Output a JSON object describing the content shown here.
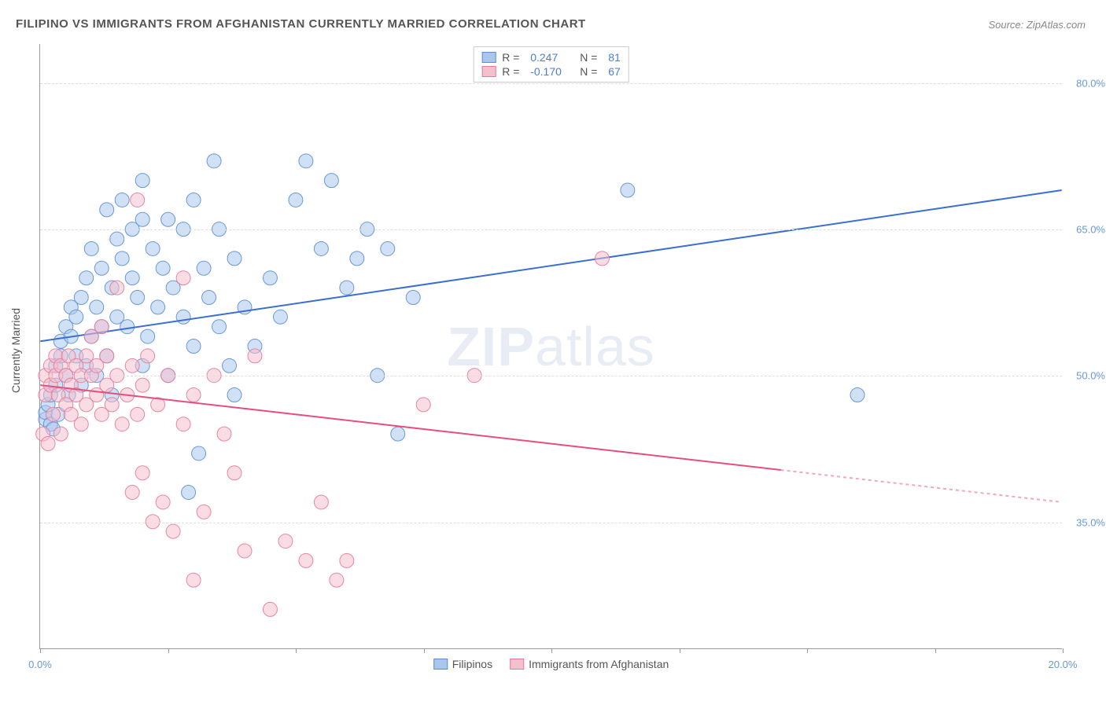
{
  "title": "FILIPINO VS IMMIGRANTS FROM AFGHANISTAN CURRENTLY MARRIED CORRELATION CHART",
  "source": "Source: ZipAtlas.com",
  "y_axis_label": "Currently Married",
  "watermark_bold": "ZIP",
  "watermark_light": "atlas",
  "chart": {
    "type": "scatter",
    "background_color": "#ffffff",
    "grid_color": "#dddddd",
    "axis_color": "#999999",
    "xlim": [
      0,
      20
    ],
    "ylim": [
      22,
      84
    ],
    "x_ticks": [
      0,
      2.5,
      5,
      7.5,
      10,
      12.5,
      15,
      17.5,
      20
    ],
    "x_tick_labels": {
      "0": "0.0%",
      "20": "20.0%"
    },
    "y_ticks": [
      35,
      50,
      65,
      80
    ],
    "y_tick_labels": {
      "35": "35.0%",
      "50": "50.0%",
      "65": "65.0%",
      "80": "80.0%"
    },
    "marker_radius": 9,
    "marker_opacity": 0.55,
    "marker_stroke_opacity": 0.9,
    "series": [
      {
        "name": "Filipinos",
        "color_fill": "#a9c7ec",
        "color_stroke": "#5b8fd6",
        "r_value": "0.247",
        "n_value": "81",
        "trend": {
          "x1": 0,
          "y1": 53.5,
          "x2": 20,
          "y2": 69,
          "color": "#3b6fd0",
          "width": 2,
          "dash_from_x": null
        },
        "points": [
          [
            0.1,
            45.5
          ],
          [
            0.1,
            46.2
          ],
          [
            0.15,
            47
          ],
          [
            0.2,
            45
          ],
          [
            0.2,
            48
          ],
          [
            0.25,
            44.5
          ],
          [
            0.3,
            49
          ],
          [
            0.3,
            51
          ],
          [
            0.35,
            46
          ],
          [
            0.4,
            52
          ],
          [
            0.4,
            53.5
          ],
          [
            0.5,
            55
          ],
          [
            0.5,
            50
          ],
          [
            0.55,
            48
          ],
          [
            0.6,
            54
          ],
          [
            0.6,
            57
          ],
          [
            0.7,
            52
          ],
          [
            0.7,
            56
          ],
          [
            0.8,
            49
          ],
          [
            0.8,
            58
          ],
          [
            0.9,
            51
          ],
          [
            0.9,
            60
          ],
          [
            1.0,
            54
          ],
          [
            1.0,
            63
          ],
          [
            1.1,
            57
          ],
          [
            1.1,
            50
          ],
          [
            1.2,
            61
          ],
          [
            1.2,
            55
          ],
          [
            1.3,
            67
          ],
          [
            1.3,
            52
          ],
          [
            1.4,
            59
          ],
          [
            1.4,
            48
          ],
          [
            1.5,
            64
          ],
          [
            1.5,
            56
          ],
          [
            1.6,
            62
          ],
          [
            1.6,
            68
          ],
          [
            1.7,
            55
          ],
          [
            1.8,
            60
          ],
          [
            1.8,
            65
          ],
          [
            1.9,
            58
          ],
          [
            2.0,
            51
          ],
          [
            2.0,
            66
          ],
          [
            2.0,
            70
          ],
          [
            2.1,
            54
          ],
          [
            2.2,
            63
          ],
          [
            2.3,
            57
          ],
          [
            2.4,
            61
          ],
          [
            2.5,
            66
          ],
          [
            2.5,
            50
          ],
          [
            2.6,
            59
          ],
          [
            2.8,
            65
          ],
          [
            2.8,
            56
          ],
          [
            2.9,
            38
          ],
          [
            3.0,
            53
          ],
          [
            3.0,
            68
          ],
          [
            3.1,
            42
          ],
          [
            3.2,
            61
          ],
          [
            3.3,
            58
          ],
          [
            3.4,
            72
          ],
          [
            3.5,
            55
          ],
          [
            3.5,
            65
          ],
          [
            3.7,
            51
          ],
          [
            3.8,
            48
          ],
          [
            3.8,
            62
          ],
          [
            4.0,
            57
          ],
          [
            4.2,
            53
          ],
          [
            4.5,
            60
          ],
          [
            4.7,
            56
          ],
          [
            5.0,
            68
          ],
          [
            5.2,
            72
          ],
          [
            5.5,
            63
          ],
          [
            5.7,
            70
          ],
          [
            6.0,
            59
          ],
          [
            6.2,
            62
          ],
          [
            6.4,
            65
          ],
          [
            6.6,
            50
          ],
          [
            6.8,
            63
          ],
          [
            7.0,
            44
          ],
          [
            7.3,
            58
          ],
          [
            11.5,
            69
          ],
          [
            16.0,
            48
          ]
        ]
      },
      {
        "name": "Immigrants from Afghanistan",
        "color_fill": "#f4c0cd",
        "color_stroke": "#e57b9a",
        "r_value": "-0.170",
        "n_value": "67",
        "trend": {
          "x1": 0,
          "y1": 49,
          "x2": 20,
          "y2": 37,
          "color": "#e74e7c",
          "width": 2,
          "dash_from_x": 14.5
        },
        "points": [
          [
            0.05,
            44
          ],
          [
            0.1,
            48
          ],
          [
            0.1,
            50
          ],
          [
            0.15,
            43
          ],
          [
            0.2,
            49
          ],
          [
            0.2,
            51
          ],
          [
            0.25,
            46
          ],
          [
            0.3,
            50
          ],
          [
            0.3,
            52
          ],
          [
            0.35,
            48
          ],
          [
            0.4,
            51
          ],
          [
            0.4,
            44
          ],
          [
            0.5,
            50
          ],
          [
            0.5,
            47
          ],
          [
            0.55,
            52
          ],
          [
            0.6,
            49
          ],
          [
            0.6,
            46
          ],
          [
            0.7,
            51
          ],
          [
            0.7,
            48
          ],
          [
            0.8,
            50
          ],
          [
            0.8,
            45
          ],
          [
            0.9,
            52
          ],
          [
            0.9,
            47
          ],
          [
            1.0,
            50
          ],
          [
            1.0,
            54
          ],
          [
            1.1,
            48
          ],
          [
            1.1,
            51
          ],
          [
            1.2,
            46
          ],
          [
            1.2,
            55
          ],
          [
            1.3,
            49
          ],
          [
            1.3,
            52
          ],
          [
            1.4,
            47
          ],
          [
            1.5,
            50
          ],
          [
            1.5,
            59
          ],
          [
            1.6,
            45
          ],
          [
            1.7,
            48
          ],
          [
            1.8,
            51
          ],
          [
            1.8,
            38
          ],
          [
            1.9,
            46
          ],
          [
            1.9,
            68
          ],
          [
            2.0,
            49
          ],
          [
            2.0,
            40
          ],
          [
            2.1,
            52
          ],
          [
            2.2,
            35
          ],
          [
            2.3,
            47
          ],
          [
            2.4,
            37
          ],
          [
            2.5,
            50
          ],
          [
            2.6,
            34
          ],
          [
            2.8,
            45
          ],
          [
            2.8,
            60
          ],
          [
            3.0,
            48
          ],
          [
            3.0,
            29
          ],
          [
            3.2,
            36
          ],
          [
            3.4,
            50
          ],
          [
            3.6,
            44
          ],
          [
            3.8,
            40
          ],
          [
            4.0,
            32
          ],
          [
            4.2,
            52
          ],
          [
            4.5,
            26
          ],
          [
            4.8,
            33
          ],
          [
            5.2,
            31
          ],
          [
            5.5,
            37
          ],
          [
            5.8,
            29
          ],
          [
            6.0,
            31
          ],
          [
            7.5,
            47
          ],
          [
            8.5,
            50
          ],
          [
            11.0,
            62
          ]
        ]
      }
    ]
  },
  "legend_bottom": {
    "items": [
      "Filipinos",
      "Immigrants from Afghanistan"
    ]
  }
}
